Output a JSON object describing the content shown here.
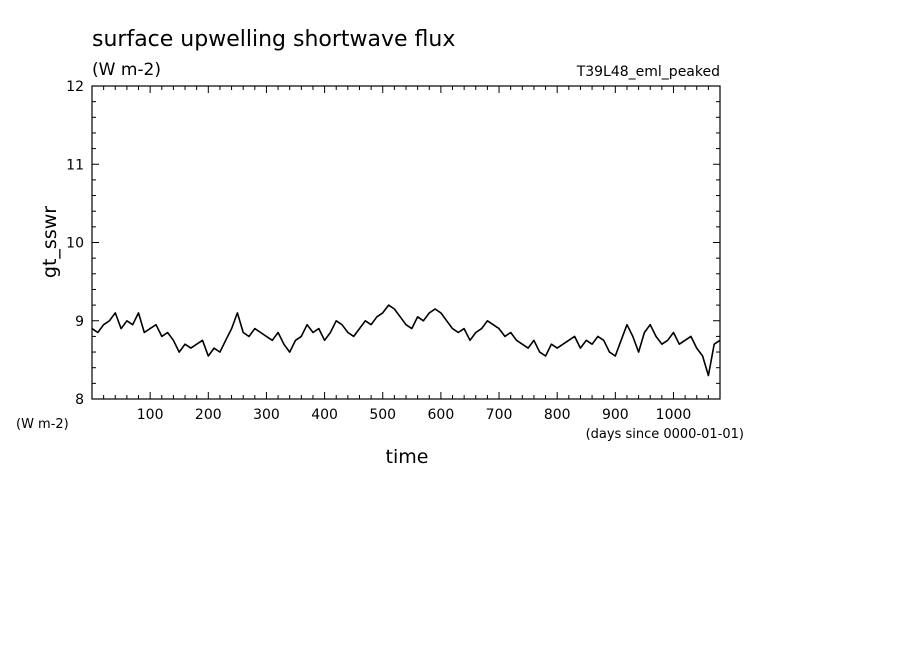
{
  "chart_data": {
    "type": "line",
    "title": "surface upwelling shortwave flux",
    "units": "(W m-2)",
    "experiment": "T39L48_eml_peaked",
    "ylabel": "gt_sswr",
    "yunits": "(W m-2)",
    "xlabel": "time",
    "xunits": "(days since 0000-01-01)",
    "xlim": [
      0,
      1080
    ],
    "ylim": [
      8,
      12
    ],
    "xticks": [
      "100",
      "200",
      "300",
      "400",
      "500",
      "600",
      "700",
      "800",
      "900",
      "1000"
    ],
    "yticks": [
      "8",
      "9",
      "10",
      "11",
      "12"
    ],
    "grid": false,
    "series": [
      {
        "color": "#000000",
        "x": [
          0,
          10,
          20,
          30,
          40,
          50,
          60,
          70,
          80,
          90,
          100,
          110,
          120,
          130,
          140,
          150,
          160,
          170,
          180,
          190,
          200,
          210,
          220,
          230,
          240,
          250,
          260,
          270,
          280,
          290,
          300,
          310,
          320,
          330,
          340,
          350,
          360,
          370,
          380,
          390,
          400,
          410,
          420,
          430,
          440,
          450,
          460,
          470,
          480,
          490,
          500,
          510,
          520,
          530,
          540,
          550,
          560,
          570,
          580,
          590,
          600,
          610,
          620,
          630,
          640,
          650,
          660,
          670,
          680,
          690,
          700,
          710,
          720,
          730,
          740,
          750,
          760,
          770,
          780,
          790,
          800,
          810,
          820,
          830,
          840,
          850,
          860,
          870,
          880,
          890,
          900,
          910,
          920,
          930,
          940,
          950,
          960,
          970,
          980,
          990,
          1000,
          1010,
          1020,
          1030,
          1040,
          1050,
          1060,
          1070,
          1080
        ],
        "values": [
          8.9,
          8.85,
          8.95,
          9.0,
          9.1,
          8.9,
          9.0,
          8.95,
          9.1,
          8.85,
          8.9,
          8.95,
          8.8,
          8.85,
          8.75,
          8.6,
          8.7,
          8.65,
          8.7,
          8.75,
          8.55,
          8.65,
          8.6,
          8.75,
          8.9,
          9.1,
          8.85,
          8.8,
          8.9,
          8.85,
          8.8,
          8.75,
          8.85,
          8.7,
          8.6,
          8.75,
          8.8,
          8.95,
          8.85,
          8.9,
          8.75,
          8.85,
          9.0,
          8.95,
          8.85,
          8.8,
          8.9,
          9.0,
          8.95,
          9.05,
          9.1,
          9.2,
          9.15,
          9.05,
          8.95,
          8.9,
          9.05,
          9.0,
          9.1,
          9.15,
          9.1,
          9.0,
          8.9,
          8.85,
          8.9,
          8.75,
          8.85,
          8.9,
          9.0,
          8.95,
          8.9,
          8.8,
          8.85,
          8.75,
          8.7,
          8.65,
          8.75,
          8.6,
          8.55,
          8.7,
          8.65,
          8.7,
          8.75,
          8.8,
          8.65,
          8.75,
          8.7,
          8.8,
          8.75,
          8.6,
          8.55,
          8.75,
          8.95,
          8.8,
          8.6,
          8.85,
          8.95,
          8.8,
          8.7,
          8.75,
          8.85,
          8.7,
          8.75,
          8.8,
          8.65,
          8.55,
          8.3,
          8.7,
          8.75
        ]
      }
    ]
  }
}
